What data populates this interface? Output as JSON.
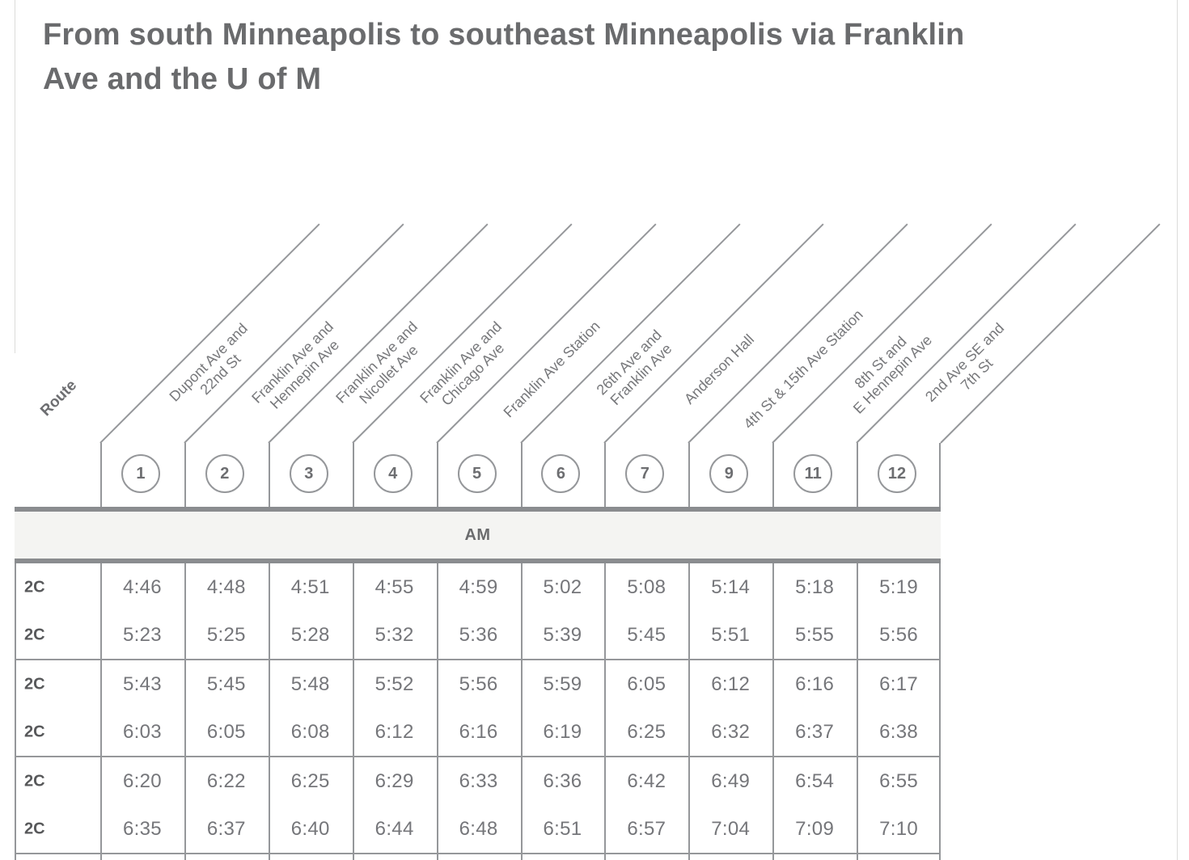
{
  "page": {
    "title_lines": [
      "From south Minneapolis to southeast Minneapolis via Franklin",
      "Ave and the U of M"
    ]
  },
  "schedule": {
    "route_header": "Route",
    "period_label": "AM",
    "stops": [
      {
        "number": "1",
        "name_lines": [
          "Dupont Ave and",
          "22nd St"
        ]
      },
      {
        "number": "2",
        "name_lines": [
          "Franklin Ave and",
          "Hennepin Ave"
        ]
      },
      {
        "number": "3",
        "name_lines": [
          "Franklin Ave and",
          "Nicollet Ave"
        ]
      },
      {
        "number": "4",
        "name_lines": [
          "Franklin Ave and",
          "Chicago Ave"
        ]
      },
      {
        "number": "5",
        "name_lines": [
          "Franklin Ave Station"
        ]
      },
      {
        "number": "6",
        "name_lines": [
          "26th Ave and",
          "Franklin Ave"
        ]
      },
      {
        "number": "7",
        "name_lines": [
          "Anderson Hall"
        ]
      },
      {
        "number": "9",
        "name_lines": [
          "4th St & 15th Ave Station"
        ]
      },
      {
        "number": "11",
        "name_lines": [
          "8th St and",
          "E Hennepin Ave"
        ]
      },
      {
        "number": "12",
        "name_lines": [
          "2nd Ave SE and",
          "7th St"
        ]
      }
    ],
    "row_groups": [
      {
        "rows": [
          {
            "route": "2C",
            "times": [
              "4:46",
              "4:48",
              "4:51",
              "4:55",
              "4:59",
              "5:02",
              "5:08",
              "5:14",
              "5:18",
              "5:19"
            ]
          },
          {
            "route": "2C",
            "times": [
              "5:23",
              "5:25",
              "5:28",
              "5:32",
              "5:36",
              "5:39",
              "5:45",
              "5:51",
              "5:55",
              "5:56"
            ]
          }
        ]
      },
      {
        "rows": [
          {
            "route": "2C",
            "times": [
              "5:43",
              "5:45",
              "5:48",
              "5:52",
              "5:56",
              "5:59",
              "6:05",
              "6:12",
              "6:16",
              "6:17"
            ]
          },
          {
            "route": "2C",
            "times": [
              "6:03",
              "6:05",
              "6:08",
              "6:12",
              "6:16",
              "6:19",
              "6:25",
              "6:32",
              "6:37",
              "6:38"
            ]
          }
        ]
      },
      {
        "rows": [
          {
            "route": "2C",
            "times": [
              "6:20",
              "6:22",
              "6:25",
              "6:29",
              "6:33",
              "6:36",
              "6:42",
              "6:49",
              "6:54",
              "6:55"
            ]
          },
          {
            "route": "2C",
            "times": [
              "6:35",
              "6:37",
              "6:40",
              "6:44",
              "6:48",
              "6:51",
              "6:57",
              "7:04",
              "7:09",
              "7:10"
            ]
          }
        ]
      }
    ]
  },
  "colors": {
    "title_text": "#6a6b6d",
    "table_line": "#95979a",
    "thick_bar": "#8a8c8f",
    "period_band_bg": "#f4f4f2",
    "time_text": "#75767a",
    "route_text": "#58595b",
    "stop_label_text": "#77787b",
    "page_divider": "#dcdcda"
  }
}
